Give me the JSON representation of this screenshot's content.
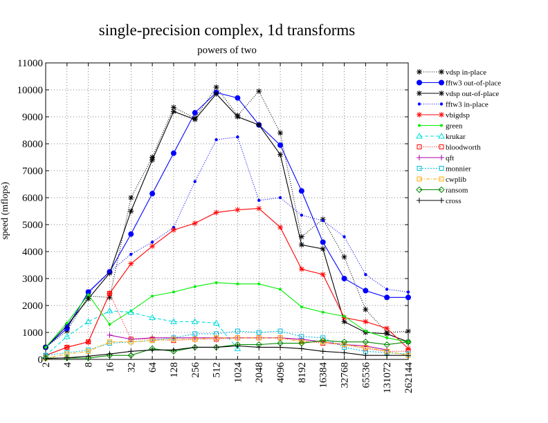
{
  "chart_data": {
    "type": "line",
    "title": "single-precision complex, 1d transforms",
    "subtitle": "powers of two",
    "xlabel": "",
    "ylabel": "speed (mflops)",
    "categories": [
      "2",
      "4",
      "8",
      "16",
      "32",
      "64",
      "128",
      "256",
      "512",
      "1024",
      "2048",
      "4096",
      "8192",
      "16384",
      "32768",
      "65536",
      "131072",
      "262144"
    ],
    "yticks": [
      0,
      1000,
      2000,
      3000,
      4000,
      5000,
      6000,
      7000,
      8000,
      9000,
      10000,
      11000
    ],
    "ylim": [
      0,
      11000
    ],
    "legend_position": "right",
    "series": [
      {
        "name": "vdsp in-place",
        "color": "#000000",
        "dash": "1,2",
        "marker": "asterisk",
        "values": [
          450,
          1050,
          2350,
          2300,
          6000,
          7500,
          9350,
          8950,
          10100,
          9050,
          9950,
          8400,
          4550,
          5200,
          3800,
          1850,
          1000,
          1050
        ]
      },
      {
        "name": "fftw3 out-of-place",
        "color": "#0000ff",
        "dash": "",
        "marker": "circle-big",
        "values": [
          450,
          1150,
          2500,
          3250,
          4650,
          6150,
          7650,
          9150,
          9900,
          9700,
          8700,
          7950,
          6250,
          4350,
          3000,
          2550,
          2300,
          2300
        ]
      },
      {
        "name": "vdsp out-of-place",
        "color": "#000000",
        "dash": "",
        "marker": "asterisk",
        "values": [
          450,
          1250,
          2250,
          3200,
          5500,
          7400,
          9200,
          8900,
          9850,
          9000,
          8700,
          7600,
          4250,
          4100,
          1400,
          1000,
          950,
          650
        ]
      },
      {
        "name": "fftw3 in-place",
        "color": "#0000ff",
        "dash": "1,2",
        "marker": "circle-small",
        "values": [
          450,
          1250,
          2450,
          3250,
          3900,
          4350,
          4900,
          6600,
          8150,
          8250,
          5900,
          6000,
          5350,
          5150,
          4550,
          3150,
          2600,
          2500
        ]
      },
      {
        "name": "vbigdsp",
        "color": "#ff0000",
        "dash": "",
        "marker": "asterisk",
        "values": [
          150,
          450,
          650,
          2450,
          3550,
          4200,
          4800,
          5050,
          5450,
          5550,
          5600,
          4900,
          3350,
          3150,
          1550,
          1400,
          1150,
          400
        ]
      },
      {
        "name": "green",
        "color": "#00ee00",
        "dash": "",
        "marker": "dot",
        "values": [
          450,
          1350,
          2400,
          1300,
          1800,
          2350,
          2500,
          2700,
          2850,
          2800,
          2800,
          2600,
          1950,
          1750,
          1600,
          1050,
          800,
          650
        ]
      },
      {
        "name": "krukar",
        "color": "#00dddd",
        "dash": "5,3",
        "marker": "triangle",
        "values": [
          150,
          850,
          1400,
          1800,
          1750,
          1550,
          1400,
          1400,
          1350,
          400,
          null,
          null,
          null,
          null,
          null,
          null,
          null,
          null
        ]
      },
      {
        "name": "bloodworth",
        "color": "#ff0000",
        "dash": "1,2",
        "marker": "square",
        "values": [
          150,
          450,
          650,
          2450,
          750,
          750,
          700,
          750,
          750,
          800,
          800,
          800,
          700,
          600,
          550,
          400,
          300,
          300
        ]
      },
      {
        "name": "qft",
        "color": "#aa00aa",
        "dash": "",
        "marker": "plus",
        "values": [
          null,
          null,
          null,
          900,
          750,
          800,
          800,
          800,
          800,
          800,
          800,
          800,
          750,
          650,
          550,
          500,
          350,
          null
        ]
      },
      {
        "name": "monnier",
        "color": "#00bbdd",
        "dash": "2,2",
        "marker": "square",
        "values": [
          150,
          250,
          350,
          600,
          650,
          700,
          800,
          950,
          950,
          1050,
          1000,
          1050,
          850,
          800,
          450,
          300,
          250,
          200
        ]
      },
      {
        "name": "cwplib",
        "color": "#ffaa00",
        "dash": "5,2,1,2",
        "marker": "square",
        "values": [
          50,
          200,
          300,
          650,
          650,
          700,
          750,
          750,
          800,
          800,
          800,
          800,
          650,
          650,
          550,
          450,
          300,
          150
        ]
      },
      {
        "name": "ransom",
        "color": "#008800",
        "dash": "",
        "marker": "diamond",
        "values": [
          50,
          50,
          50,
          150,
          150,
          400,
          300,
          450,
          450,
          550,
          550,
          600,
          600,
          700,
          650,
          650,
          550,
          650
        ]
      },
      {
        "name": "cross",
        "color": "#000000",
        "dash": "",
        "marker": "plus",
        "values": [
          30,
          60,
          120,
          200,
          300,
          350,
          350,
          450,
          450,
          500,
          450,
          450,
          400,
          300,
          250,
          150,
          150,
          150
        ]
      }
    ]
  }
}
